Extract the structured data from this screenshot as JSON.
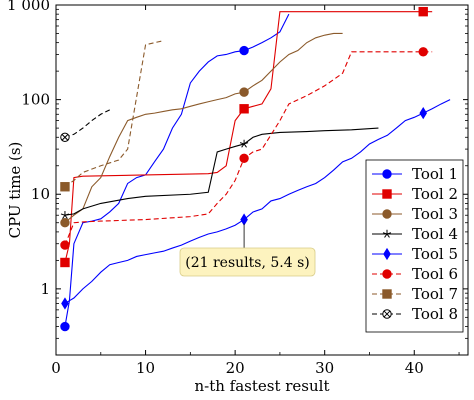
{
  "chart_data": {
    "type": "line",
    "xlabel": "n-th fastest result",
    "ylabel": "CPU time (s)",
    "xlim": [
      0,
      46
    ],
    "ylim": [
      0.2,
      1000
    ],
    "yscale": "log",
    "x_ticks": [
      0,
      10,
      20,
      30,
      40
    ],
    "x_tick_labels": [
      "0",
      "10",
      "20",
      "30",
      "40"
    ],
    "y_ticks": [
      1,
      10,
      100,
      1000
    ],
    "y_tick_labels": [
      "1",
      "10",
      "100",
      "1 000"
    ],
    "grid": false,
    "legend_position": "bottom-right",
    "annotation": {
      "text": "(21 results, 5.4 s)",
      "x": 21,
      "y": 5.4
    },
    "series": [
      {
        "name": "Tool 1",
        "color": "#0000ff",
        "dash": "solid",
        "marker": "circle",
        "marker_x": [
          1,
          21
        ],
        "x": [
          1,
          1.5,
          2,
          3,
          4,
          5,
          6,
          7,
          8,
          9,
          10,
          11,
          12,
          13,
          14,
          15,
          16,
          17,
          18,
          19,
          20,
          21,
          22,
          23,
          24,
          25,
          26
        ],
        "y": [
          0.4,
          0.75,
          3,
          5,
          5.2,
          5.5,
          6.5,
          8,
          13,
          15,
          16,
          22,
          30,
          50,
          70,
          150,
          200,
          250,
          290,
          300,
          320,
          330,
          360,
          400,
          450,
          520,
          800
        ]
      },
      {
        "name": "Tool 2",
        "color": "#e00000",
        "dash": "solid",
        "marker": "square",
        "marker_x": [
          1,
          21,
          41
        ],
        "x": [
          1,
          1.5,
          2,
          3,
          10,
          17,
          18,
          19,
          20,
          21,
          22,
          23,
          24,
          25,
          30,
          35,
          40,
          41,
          42
        ],
        "y": [
          1.9,
          3,
          15,
          15.5,
          16,
          16.5,
          17,
          20,
          60,
          80,
          85,
          90,
          130,
          850,
          850,
          850,
          850,
          850,
          850
        ]
      },
      {
        "name": "Tool 3",
        "color": "#8b5a2b",
        "dash": "solid",
        "marker": "circle",
        "marker_x": [
          1,
          21
        ],
        "x": [
          1,
          1.5,
          2,
          3,
          4,
          5,
          6,
          7,
          8,
          9,
          10,
          11,
          12,
          13,
          14,
          15,
          16,
          17,
          18,
          19,
          20,
          21,
          22,
          23,
          24,
          25,
          26,
          27,
          28,
          29,
          30,
          31,
          32
        ],
        "y": [
          5,
          5.5,
          6,
          7,
          12,
          15,
          25,
          40,
          60,
          65,
          70,
          72,
          75,
          78,
          80,
          85,
          90,
          95,
          100,
          105,
          115,
          120,
          140,
          160,
          200,
          250,
          300,
          330,
          400,
          450,
          480,
          500,
          500
        ]
      },
      {
        "name": "Tool 4",
        "color": "#000000",
        "dash": "solid",
        "marker": "star",
        "marker_x": [
          1,
          21
        ],
        "x": [
          1,
          2,
          3,
          5,
          8,
          10,
          15,
          17,
          18,
          19,
          20,
          21,
          22,
          23,
          25,
          28,
          30,
          33,
          36
        ],
        "y": [
          6,
          6.2,
          7,
          8,
          9,
          9.5,
          10,
          10.5,
          28,
          30,
          32,
          34,
          40,
          43,
          45,
          46,
          47,
          48,
          50
        ]
      },
      {
        "name": "Tool 5",
        "color": "#0000ff",
        "dash": "solid",
        "marker": "diamond",
        "marker_x": [
          1,
          21,
          41
        ],
        "x": [
          1,
          1.5,
          2,
          3,
          4,
          5,
          6,
          7,
          8,
          9,
          10,
          11,
          12,
          13,
          14,
          15,
          16,
          17,
          18,
          19,
          20,
          21,
          22,
          23,
          24,
          25,
          26,
          27,
          28,
          29,
          30,
          31,
          32,
          33,
          34,
          35,
          36,
          37,
          38,
          39,
          40,
          41,
          42,
          43,
          44
        ],
        "y": [
          0.7,
          0.75,
          0.8,
          1.0,
          1.2,
          1.5,
          1.8,
          1.9,
          2.0,
          2.2,
          2.3,
          2.4,
          2.5,
          2.7,
          2.9,
          3.2,
          3.5,
          3.8,
          4.0,
          4.3,
          4.7,
          5.4,
          6.5,
          7.0,
          8.5,
          9.0,
          10,
          11,
          12,
          13,
          15,
          18,
          22,
          24,
          28,
          34,
          38,
          42,
          50,
          60,
          65,
          72,
          80,
          90,
          100
        ]
      },
      {
        "name": "Tool 6",
        "color": "#e00000",
        "dash": "dashed",
        "marker": "circle",
        "marker_x": [
          1,
          21,
          41
        ],
        "x": [
          1,
          2,
          3,
          5,
          10,
          15,
          17,
          18,
          19,
          20,
          21,
          22,
          23,
          25,
          26,
          28,
          30,
          32,
          33,
          35,
          38,
          40,
          41,
          42
        ],
        "y": [
          2.9,
          5,
          5.1,
          5.2,
          5.4,
          5.8,
          6.2,
          8,
          10,
          14,
          24,
          28,
          30,
          60,
          90,
          110,
          140,
          190,
          320,
          320,
          320,
          320,
          320,
          320
        ]
      },
      {
        "name": "Tool 7",
        "color": "#8b5a2b",
        "dash": "dashed",
        "marker": "square",
        "marker_x": [
          1
        ],
        "x": [
          1,
          2,
          3,
          5,
          7,
          8,
          10,
          12
        ],
        "y": [
          12,
          14,
          17,
          20,
          23,
          30,
          380,
          420
        ]
      },
      {
        "name": "Tool 8",
        "color": "#000000",
        "dash": "dashed",
        "marker": "circle-x",
        "marker_x": [
          1
        ],
        "x": [
          1,
          2,
          3,
          4,
          5,
          6
        ],
        "y": [
          40,
          43,
          50,
          60,
          70,
          78
        ]
      }
    ]
  }
}
